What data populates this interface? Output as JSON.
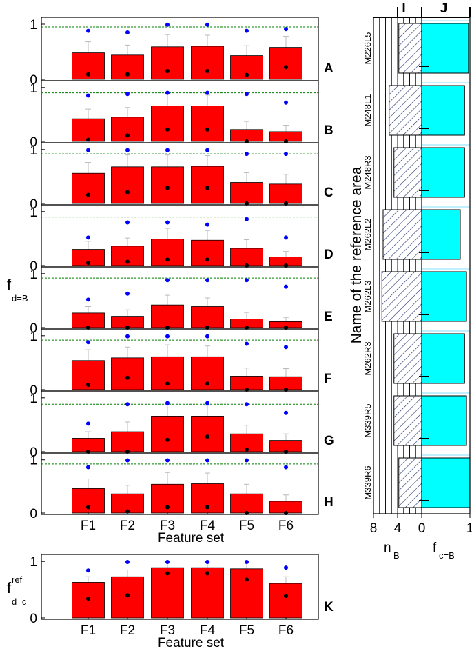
{
  "figure": {
    "left_ylabel_main": "f",
    "left_ylabel_sub": "d=B",
    "k_ylabel_main": "f",
    "k_ylabel_sup": "ref",
    "k_ylabel_sub": "d=c",
    "xlabel": "Feature set",
    "right_ylabel": "Name of the reference area",
    "right_col_I": "I",
    "right_col_J": "J",
    "nB_main": "n",
    "nB_sub": "B",
    "fcB_main": "f",
    "fcB_sub": "c=B"
  },
  "colors": {
    "bar": "#ff0000",
    "blue_dot": "#0000ff",
    "black_dot": "#000000",
    "dashed_line": "#008000",
    "cyan_bar": "#00ffff",
    "blue_grid": "#0000aa",
    "light_cyan_line": "#80e0ff"
  },
  "chart_data": [
    {
      "type": "bar",
      "panel": "A",
      "categories": [
        "F1",
        "F2",
        "F3",
        "F4",
        "F5",
        "F6"
      ],
      "values": [
        0.48,
        0.44,
        0.59,
        0.6,
        0.43,
        0.58
      ],
      "errors": [
        0.2,
        0.18,
        0.22,
        0.2,
        0.18,
        0.2
      ],
      "blue": [
        0.88,
        0.85,
        0.99,
        0.99,
        0.88,
        0.91
      ],
      "black": [
        0.09,
        0.09,
        0.15,
        0.15,
        0.08,
        0.22
      ],
      "reference_line": 0.95,
      "ylim": [
        0,
        1.1
      ],
      "yticks": [
        "0",
        "1"
      ]
    },
    {
      "type": "bar",
      "panel": "B",
      "categories": [
        "F1",
        "F2",
        "F3",
        "F4",
        "F5",
        "F6"
      ],
      "values": [
        0.42,
        0.45,
        0.66,
        0.66,
        0.22,
        0.18
      ],
      "errors": [
        0.18,
        0.18,
        0.22,
        0.2,
        0.15,
        0.12
      ],
      "blue": [
        0.85,
        0.88,
        0.9,
        0.9,
        0.88,
        0.72
      ],
      "black": [
        0.03,
        0.11,
        0.22,
        0.22,
        0.0,
        0.0
      ],
      "reference_line": 0.9,
      "ylim": [
        0,
        1.1
      ],
      "yticks": [
        "0",
        "1"
      ]
    },
    {
      "type": "bar",
      "panel": "C",
      "categories": [
        "F1",
        "F2",
        "F3",
        "F4",
        "F5",
        "F6"
      ],
      "values": [
        0.56,
        0.68,
        0.68,
        0.69,
        0.39,
        0.36
      ],
      "errors": [
        0.2,
        0.22,
        0.22,
        0.2,
        0.18,
        0.18
      ],
      "blue": [
        0.99,
        0.99,
        0.99,
        0.99,
        0.92,
        0.92
      ],
      "black": [
        0.16,
        0.21,
        0.29,
        0.29,
        0.0,
        0.0
      ],
      "reference_line": 0.92,
      "ylim": [
        0,
        1.1
      ],
      "yticks": [
        "0",
        "1"
      ]
    },
    {
      "type": "bar",
      "panel": "D",
      "categories": [
        "F1",
        "F2",
        "F3",
        "F4",
        "F5",
        "F6"
      ],
      "values": [
        0.3,
        0.36,
        0.49,
        0.47,
        0.32,
        0.16
      ],
      "errors": [
        0.15,
        0.15,
        0.2,
        0.18,
        0.16,
        0.1
      ],
      "blue": [
        0.52,
        0.8,
        0.8,
        0.76,
        0.86,
        0.52
      ],
      "black": [
        0.05,
        0.07,
        0.11,
        0.11,
        0.0,
        0.0
      ],
      "reference_line": 0.9,
      "ylim": [
        0,
        1.1
      ],
      "yticks": [
        "0",
        "1"
      ]
    },
    {
      "type": "bar",
      "panel": "E",
      "categories": [
        "F1",
        "F2",
        "F3",
        "F4",
        "F5",
        "F6"
      ],
      "values": [
        0.27,
        0.21,
        0.42,
        0.39,
        0.16,
        0.11
      ],
      "errors": [
        0.12,
        0.12,
        0.18,
        0.16,
        0.12,
        0.08
      ],
      "blue": [
        0.52,
        0.63,
        0.88,
        0.88,
        0.88,
        0.76
      ],
      "black": [
        0.0,
        0.0,
        0.0,
        0.0,
        0.0,
        0.0
      ],
      "reference_line": 0.92,
      "ylim": [
        0,
        1.1
      ],
      "yticks": [
        "0",
        "1"
      ]
    },
    {
      "type": "bar",
      "panel": "F",
      "categories": [
        "F1",
        "F2",
        "F3",
        "F4",
        "F5",
        "F6"
      ],
      "values": [
        0.54,
        0.59,
        0.61,
        0.61,
        0.25,
        0.24
      ],
      "errors": [
        0.2,
        0.2,
        0.22,
        0.2,
        0.15,
        0.15
      ],
      "blue": [
        0.88,
        0.99,
        0.99,
        0.99,
        0.85,
        0.79
      ],
      "black": [
        0.09,
        0.22,
        0.11,
        0.11,
        0.0,
        0.0
      ],
      "reference_line": 0.92,
      "ylim": [
        0,
        1.1
      ],
      "yticks": [
        "0",
        "1"
      ]
    },
    {
      "type": "bar",
      "panel": "G",
      "categories": [
        "F1",
        "F2",
        "F3",
        "F4",
        "F5",
        "F6"
      ],
      "values": [
        0.25,
        0.37,
        0.66,
        0.66,
        0.33,
        0.21
      ],
      "errors": [
        0.12,
        0.18,
        0.22,
        0.2,
        0.16,
        0.12
      ],
      "blue": [
        0.52,
        0.88,
        0.9,
        0.9,
        0.88,
        0.72
      ],
      "black": [
        0.0,
        0.0,
        0.22,
        0.28,
        0.04,
        0.0
      ],
      "reference_line": 0.88,
      "ylim": [
        0,
        1.1
      ],
      "yticks": [
        "0",
        "1"
      ]
    },
    {
      "type": "bar",
      "panel": "H",
      "categories": [
        "F1",
        "F2",
        "F3",
        "F4",
        "F5",
        "F6"
      ],
      "values": [
        0.46,
        0.36,
        0.54,
        0.55,
        0.36,
        0.22
      ],
      "errors": [
        0.18,
        0.16,
        0.22,
        0.2,
        0.18,
        0.12
      ],
      "blue": [
        0.86,
        0.99,
        0.99,
        0.99,
        0.99,
        0.86
      ],
      "black": [
        0.11,
        0.03,
        0.11,
        0.11,
        0.0,
        0.0
      ],
      "reference_line": 0.92,
      "ylim": [
        0,
        1.1
      ],
      "yticks": [
        "0",
        "1"
      ],
      "xlabel": "Feature set"
    },
    {
      "type": "bar",
      "panel": "K",
      "categories": [
        "F1",
        "F2",
        "F3",
        "F4",
        "F5",
        "F6"
      ],
      "values": [
        0.63,
        0.73,
        0.89,
        0.89,
        0.87,
        0.61
      ],
      "errors": [
        0.1,
        0.12,
        0.1,
        0.1,
        0.1,
        0.12
      ],
      "blue": [
        0.84,
        0.99,
        0.99,
        0.99,
        0.99,
        0.89
      ],
      "black": [
        0.34,
        0.4,
        0.79,
        0.79,
        0.68,
        0.39
      ],
      "ylim": [
        0,
        1.1
      ],
      "yticks": [
        "0",
        "1"
      ],
      "xlabel": "Feature set"
    },
    {
      "type": "bar",
      "orientation": "horizontal",
      "panel": "I",
      "categories": [
        "M226L5",
        "M248L1",
        "M248R3",
        "M262L2",
        "M262L3",
        "M262R3",
        "M339R5",
        "M339R6"
      ],
      "values": [
        3.8,
        5.4,
        4.6,
        6.4,
        6.6,
        4.6,
        4.6,
        3.8
      ],
      "xlim": [
        0,
        8
      ],
      "xticks": [
        "8",
        "4",
        "0"
      ],
      "xlabel": "nB"
    },
    {
      "type": "bar",
      "orientation": "horizontal",
      "panel": "J",
      "categories": [
        "M226L5",
        "M248L1",
        "M248R3",
        "M262L2",
        "M262L3",
        "M262R3",
        "M339R5",
        "M339R6"
      ],
      "values": [
        0.97,
        0.89,
        0.89,
        0.8,
        0.93,
        0.89,
        0.93,
        1.0
      ],
      "xlim": [
        0,
        1
      ],
      "xticks": [
        "0",
        "1"
      ],
      "xlabel": "fc=B"
    }
  ]
}
